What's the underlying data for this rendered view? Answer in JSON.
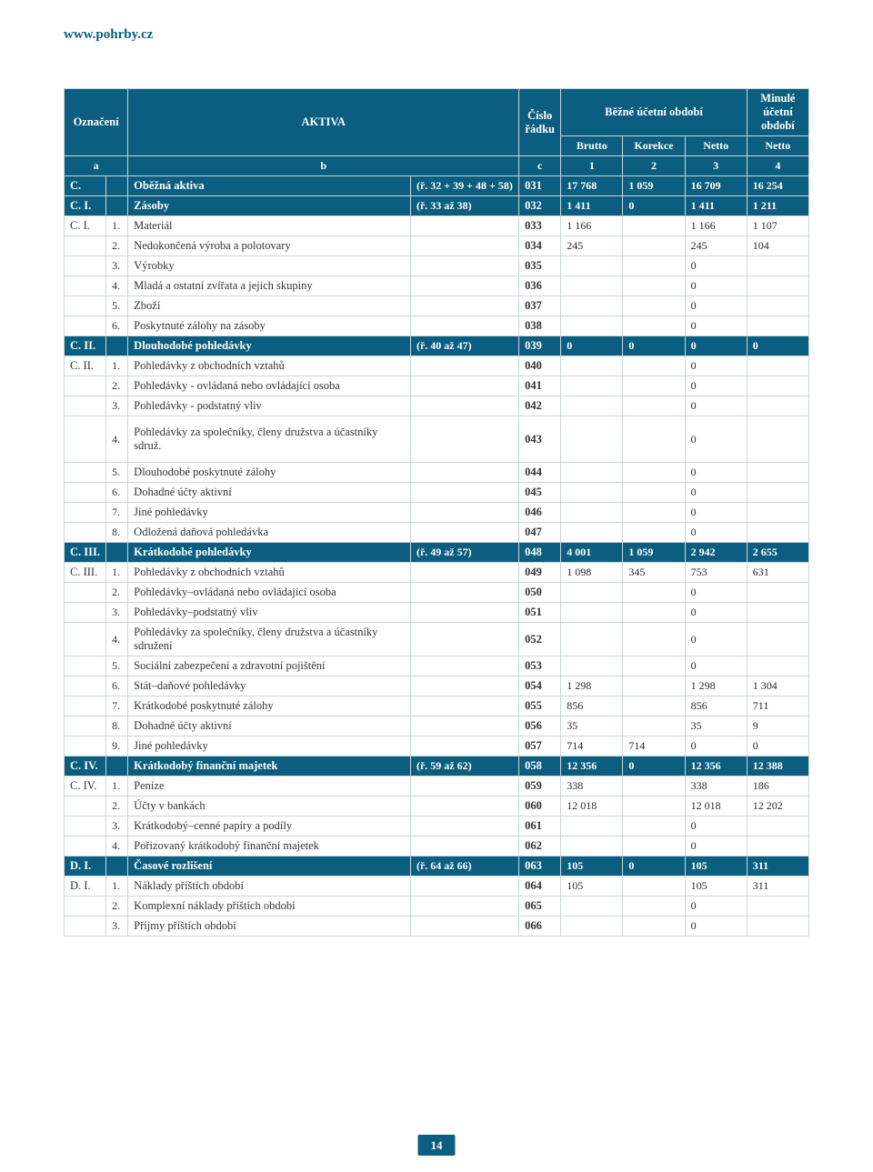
{
  "site_url": "www.pohrby.cz",
  "page_number": "14",
  "header": {
    "oznaceni": "Označení",
    "aktiva": "AKTIVA",
    "cislo_radku": "Číslo řádku",
    "bezne": "Běžné účetní období",
    "minule": "Minulé účetní období",
    "a": "a",
    "b": "b",
    "c": "c",
    "brutto": "Brutto",
    "korekce": "Korekce",
    "netto": "Netto",
    "n1": "1",
    "n2": "2",
    "n3": "3",
    "n4": "4"
  },
  "rows": [
    {
      "dark": true,
      "a": "C.",
      "n": "",
      "desc": "Oběžná aktiva",
      "ref": "(ř. 32 + 39 + 48 + 58)",
      "row": "031",
      "v": [
        "17 768",
        "1 059",
        "16 709",
        "16 254"
      ]
    },
    {
      "dark": true,
      "a": "C. I.",
      "n": "",
      "desc": "Zásoby",
      "ref": "(ř. 33 až 38)",
      "row": "032",
      "v": [
        "1 411",
        "0",
        "1 411",
        "1 211"
      ]
    },
    {
      "a": "C. I.",
      "n": "1.",
      "desc": "Materiál",
      "ref": "",
      "row": "033",
      "v": [
        "1 166",
        "",
        "1 166",
        "1 107"
      ]
    },
    {
      "a": "",
      "n": "2.",
      "desc": "Nedokončená výroba a polotovary",
      "ref": "",
      "row": "034",
      "v": [
        "245",
        "",
        "245",
        "104"
      ]
    },
    {
      "a": "",
      "n": "3.",
      "desc": "Výrobky",
      "ref": "",
      "row": "035",
      "v": [
        "",
        "",
        "0",
        ""
      ]
    },
    {
      "a": "",
      "n": "4.",
      "desc": "Mladá a ostatní zvířata a jejich skupiny",
      "ref": "",
      "row": "036",
      "v": [
        "",
        "",
        "0",
        ""
      ]
    },
    {
      "a": "",
      "n": "5.",
      "desc": "Zboží",
      "ref": "",
      "row": "037",
      "v": [
        "",
        "",
        "0",
        ""
      ]
    },
    {
      "a": "",
      "n": "6.",
      "desc": "Poskytnuté zálohy na zásoby",
      "ref": "",
      "row": "038",
      "v": [
        "",
        "",
        "0",
        ""
      ]
    },
    {
      "dark": true,
      "a": "C. II.",
      "n": "",
      "desc": "Dlouhodobé pohledávky",
      "ref": "(ř. 40 až 47)",
      "row": "039",
      "v": [
        "0",
        "0",
        "0",
        "0"
      ]
    },
    {
      "a": "C. II.",
      "n": "1.",
      "desc": "Pohledávky z obchodních vztahů",
      "ref": "",
      "row": "040",
      "v": [
        "",
        "",
        "0",
        ""
      ]
    },
    {
      "a": "",
      "n": "2.",
      "desc": "Pohledávky - ovládaná nebo ovládající osoba",
      "ref": "",
      "row": "041",
      "v": [
        "",
        "",
        "0",
        ""
      ]
    },
    {
      "a": "",
      "n": "3.",
      "desc": "Pohledávky - podstatný vliv",
      "ref": "",
      "row": "042",
      "v": [
        "",
        "",
        "0",
        ""
      ]
    },
    {
      "tall": true,
      "a": "",
      "n": "4.",
      "desc": "Pohledávky za společníky, členy družstva  a  účastníky sdruž.",
      "ref": "",
      "row": "043",
      "v": [
        "",
        "",
        "0",
        ""
      ]
    },
    {
      "a": "",
      "n": "5.",
      "desc": "Dlouhodobé poskytnuté zálohy",
      "ref": "",
      "row": "044",
      "v": [
        "",
        "",
        "0",
        ""
      ]
    },
    {
      "a": "",
      "n": "6.",
      "desc": "Dohadné účty aktivní",
      "ref": "",
      "row": "045",
      "v": [
        "",
        "",
        "0",
        ""
      ]
    },
    {
      "a": "",
      "n": "7.",
      "desc": "Jiné pohledávky",
      "ref": "",
      "row": "046",
      "v": [
        "",
        "",
        "0",
        ""
      ]
    },
    {
      "a": "",
      "n": "8.",
      "desc": "Odložená daňová pohledávka",
      "ref": "",
      "row": "047",
      "v": [
        "",
        "",
        "0",
        ""
      ]
    },
    {
      "dark": true,
      "a": "C. III.",
      "n": "",
      "desc": "Krátkodobé pohledávky",
      "ref": "(ř. 49 až 57)",
      "row": "048",
      "v": [
        "4 001",
        "1 059",
        "2 942",
        "2 655"
      ]
    },
    {
      "a": "C. III.",
      "n": "1.",
      "desc": "Pohledávky z obchodních vztahů",
      "ref": "",
      "row": "049",
      "v": [
        "1 098",
        "345",
        "753",
        "631"
      ]
    },
    {
      "a": "",
      "n": "2.",
      "desc": "Pohledávky–ovládaná nebo ovládající osoba",
      "ref": "",
      "row": "050",
      "v": [
        "",
        "",
        "0",
        ""
      ]
    },
    {
      "a": "",
      "n": "3.",
      "desc": "Pohledávky–podstatný vliv",
      "ref": "",
      "row": "051",
      "v": [
        "",
        "",
        "0",
        ""
      ]
    },
    {
      "a": "",
      "n": "4.",
      "desc": "Pohledávky za společníky, členy družstva a účastníky sdružení",
      "ref": "",
      "row": "052",
      "v": [
        "",
        "",
        "0",
        ""
      ]
    },
    {
      "a": "",
      "n": "5.",
      "desc": "Sociální zabezpečení a zdravotní pojištění",
      "ref": "",
      "row": "053",
      "v": [
        "",
        "",
        "0",
        ""
      ]
    },
    {
      "a": "",
      "n": "6.",
      "desc": "Stát–daňové pohledávky",
      "ref": "",
      "row": "054",
      "v": [
        "1 298",
        "",
        "1 298",
        "1 304"
      ]
    },
    {
      "a": "",
      "n": "7.",
      "desc": "Krátkodobé poskytnuté zálohy",
      "ref": "",
      "row": "055",
      "v": [
        "856",
        "",
        "856",
        "711"
      ]
    },
    {
      "a": "",
      "n": "8.",
      "desc": "Dohadné účty aktivní",
      "ref": "",
      "row": "056",
      "v": [
        "35",
        "",
        "35",
        "9"
      ]
    },
    {
      "a": "",
      "n": "9.",
      "desc": "Jiné pohledávky",
      "ref": "",
      "row": "057",
      "v": [
        "714",
        "714",
        "0",
        "0"
      ]
    },
    {
      "dark": true,
      "a": "C. IV.",
      "n": "",
      "desc": "Krátkodobý finanční majetek",
      "ref": "(ř. 59 až 62)",
      "row": "058",
      "v": [
        "12 356",
        "0",
        "12 356",
        "12 388"
      ]
    },
    {
      "a": "C. IV.",
      "n": "1.",
      "desc": "Peníze",
      "ref": "",
      "row": "059",
      "v": [
        "338",
        "",
        "338",
        "186"
      ]
    },
    {
      "a": "",
      "n": "2.",
      "desc": "Účty v bankách",
      "ref": "",
      "row": "060",
      "v": [
        "12 018",
        "",
        "12 018",
        "12 202"
      ]
    },
    {
      "a": "",
      "n": "3.",
      "desc": "Krátkodobý–cenné papíry a podíly",
      "ref": "",
      "row": "061",
      "v": [
        "",
        "",
        "0",
        ""
      ]
    },
    {
      "a": "",
      "n": "4.",
      "desc": "Pořizovaný krátkodobý finanční majetek",
      "ref": "",
      "row": "062",
      "v": [
        "",
        "",
        "0",
        ""
      ]
    },
    {
      "dark": true,
      "a": "D. I.",
      "n": "",
      "desc": "Časové rozlišení",
      "ref": "(ř. 64 až 66)",
      "row": "063",
      "v": [
        "105",
        "0",
        "105",
        "311"
      ]
    },
    {
      "a": "D. I.",
      "n": "1.",
      "desc": "Náklady příštích období",
      "ref": "",
      "row": "064",
      "v": [
        "105",
        "",
        "105",
        "311"
      ]
    },
    {
      "a": "",
      "n": "2.",
      "desc": "Komplexní náklady příštích období",
      "ref": "",
      "row": "065",
      "v": [
        "",
        "",
        "0",
        ""
      ]
    },
    {
      "a": "",
      "n": "3.",
      "desc": "Příjmy příštích období",
      "ref": "",
      "row": "066",
      "v": [
        "",
        "",
        "0",
        ""
      ]
    }
  ]
}
